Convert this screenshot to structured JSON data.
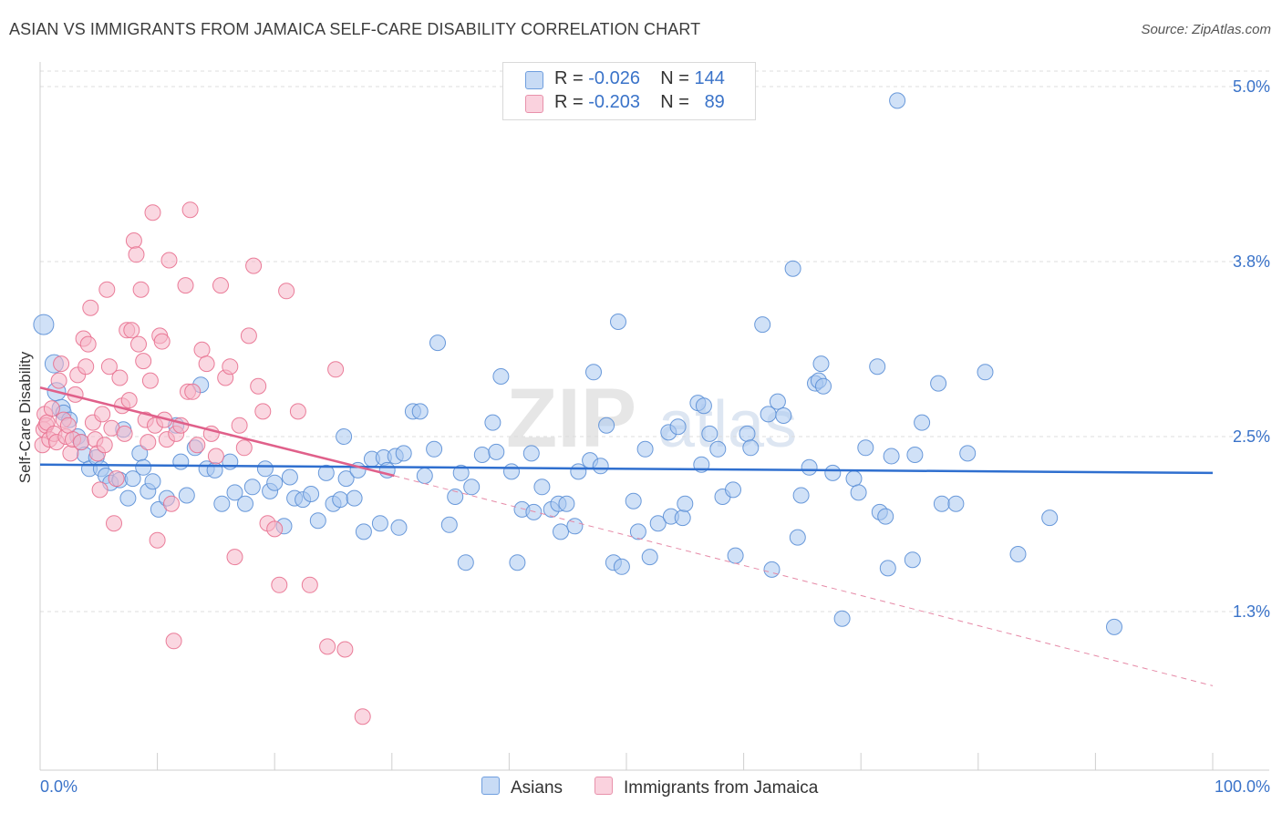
{
  "header": {
    "title": "ASIAN VS IMMIGRANTS FROM JAMAICA SELF-CARE DISABILITY CORRELATION CHART",
    "source": "Source: ZipAtlas.com"
  },
  "legend": {
    "rows": [
      {
        "r_label": "R =",
        "r_value": "-0.026",
        "n_label": "N =",
        "n_value": "144",
        "color": "#a9c8f0"
      },
      {
        "r_label": "R =",
        "r_value": "-0.203",
        "n_label": "N =",
        "n_value": "89",
        "color": "#f5b6c8"
      }
    ]
  },
  "bottom_legend": [
    {
      "label": "Asians",
      "color": "#a9c8f0"
    },
    {
      "label": "Immigrants from Jamaica",
      "color": "#f5b6c8"
    }
  ],
  "watermark": {
    "zip": "ZIP",
    "atlas": "atlas"
  },
  "chart_data": {
    "type": "scatter",
    "xlabel": "",
    "ylabel": "Self-Care Disability",
    "xlim": [
      0,
      100
    ],
    "ylim": [
      0,
      5.2
    ],
    "x_tick_labels": [
      "0.0%",
      "100.0%"
    ],
    "y_ticks": [
      {
        "value": 1.25,
        "label": "1.3%"
      },
      {
        "value": 2.5,
        "label": "2.5%"
      },
      {
        "value": 3.75,
        "label": "3.8%"
      },
      {
        "value": 5.0,
        "label": "5.0%"
      }
    ],
    "grid": true,
    "series": [
      {
        "name": "Asians",
        "color": "#5b8fd6",
        "fill": "#a9c8f0",
        "trend": {
          "x": [
            0,
            100
          ],
          "y": [
            2.3,
            2.24
          ],
          "style": "solid"
        },
        "points": [
          [
            0.3,
            3.3
          ],
          [
            1.2,
            3.02
          ],
          [
            1.4,
            2.82
          ],
          [
            1.8,
            2.7
          ],
          [
            2.0,
            2.67
          ],
          [
            2.5,
            2.62
          ],
          [
            3.2,
            2.5
          ],
          [
            3.5,
            2.46
          ],
          [
            3.8,
            2.37
          ],
          [
            4.2,
            2.27
          ],
          [
            4.8,
            2.35
          ],
          [
            5.2,
            2.27
          ],
          [
            5.6,
            2.22
          ],
          [
            6.0,
            2.17
          ],
          [
            6.8,
            2.19
          ],
          [
            7.1,
            2.55
          ],
          [
            7.5,
            2.06
          ],
          [
            7.9,
            2.2
          ],
          [
            8.5,
            2.38
          ],
          [
            8.8,
            2.28
          ],
          [
            9.2,
            2.11
          ],
          [
            9.6,
            2.18
          ],
          [
            10.1,
            1.98
          ],
          [
            10.8,
            2.06
          ],
          [
            11.6,
            2.58
          ],
          [
            12.0,
            2.32
          ],
          [
            12.5,
            2.08
          ],
          [
            13.2,
            2.42
          ],
          [
            13.7,
            2.87
          ],
          [
            14.2,
            2.27
          ],
          [
            14.9,
            2.26
          ],
          [
            15.5,
            2.02
          ],
          [
            16.2,
            2.32
          ],
          [
            16.6,
            2.1
          ],
          [
            17.5,
            2.02
          ],
          [
            18.1,
            2.14
          ],
          [
            19.2,
            2.27
          ],
          [
            19.6,
            2.11
          ],
          [
            20.0,
            2.17
          ],
          [
            20.8,
            1.86
          ],
          [
            21.3,
            2.21
          ],
          [
            21.7,
            2.06
          ],
          [
            22.4,
            2.05
          ],
          [
            23.1,
            2.09
          ],
          [
            23.7,
            1.9
          ],
          [
            24.4,
            2.24
          ],
          [
            25.0,
            2.02
          ],
          [
            25.6,
            2.05
          ],
          [
            25.9,
            2.5
          ],
          [
            26.1,
            2.2
          ],
          [
            26.8,
            2.06
          ],
          [
            27.1,
            2.26
          ],
          [
            27.6,
            1.82
          ],
          [
            28.3,
            2.34
          ],
          [
            29.0,
            1.88
          ],
          [
            29.3,
            2.35
          ],
          [
            29.6,
            2.26
          ],
          [
            30.3,
            2.36
          ],
          [
            30.6,
            1.85
          ],
          [
            31.0,
            2.38
          ],
          [
            31.8,
            2.68
          ],
          [
            32.4,
            2.68
          ],
          [
            32.8,
            2.22
          ],
          [
            33.6,
            2.41
          ],
          [
            33.9,
            3.17
          ],
          [
            34.9,
            1.87
          ],
          [
            35.4,
            2.07
          ],
          [
            35.9,
            2.24
          ],
          [
            36.3,
            1.6
          ],
          [
            36.8,
            2.14
          ],
          [
            37.7,
            2.37
          ],
          [
            38.6,
            2.6
          ],
          [
            38.9,
            2.39
          ],
          [
            39.3,
            2.93
          ],
          [
            40.2,
            2.25
          ],
          [
            40.7,
            1.6
          ],
          [
            41.1,
            1.98
          ],
          [
            41.9,
            2.38
          ],
          [
            42.1,
            1.96
          ],
          [
            42.8,
            2.14
          ],
          [
            43.6,
            1.98
          ],
          [
            44.2,
            2.02
          ],
          [
            44.4,
            1.82
          ],
          [
            44.9,
            2.02
          ],
          [
            45.6,
            1.86
          ],
          [
            45.9,
            2.25
          ],
          [
            46.9,
            2.33
          ],
          [
            47.2,
            2.96
          ],
          [
            47.8,
            2.29
          ],
          [
            48.3,
            2.58
          ],
          [
            48.9,
            1.6
          ],
          [
            49.3,
            3.32
          ],
          [
            49.6,
            1.57
          ],
          [
            50.6,
            2.04
          ],
          [
            51.0,
            1.82
          ],
          [
            51.6,
            2.41
          ],
          [
            52.0,
            1.64
          ],
          [
            52.7,
            1.88
          ],
          [
            53.6,
            2.53
          ],
          [
            53.8,
            1.93
          ],
          [
            54.4,
            2.57
          ],
          [
            54.8,
            1.92
          ],
          [
            55.0,
            2.02
          ],
          [
            56.1,
            2.74
          ],
          [
            56.4,
            2.3
          ],
          [
            56.6,
            2.72
          ],
          [
            57.1,
            2.52
          ],
          [
            57.8,
            2.41
          ],
          [
            58.2,
            2.07
          ],
          [
            59.1,
            2.12
          ],
          [
            59.3,
            1.65
          ],
          [
            60.3,
            2.52
          ],
          [
            60.6,
            2.42
          ],
          [
            61.6,
            3.3
          ],
          [
            62.1,
            2.66
          ],
          [
            62.4,
            1.55
          ],
          [
            62.9,
            2.75
          ],
          [
            63.4,
            2.65
          ],
          [
            64.2,
            3.7
          ],
          [
            64.6,
            1.78
          ],
          [
            64.9,
            2.08
          ],
          [
            65.6,
            2.28
          ],
          [
            66.1,
            2.88
          ],
          [
            66.4,
            2.9
          ],
          [
            66.8,
            2.86
          ],
          [
            66.6,
            3.02
          ],
          [
            67.6,
            2.24
          ],
          [
            68.4,
            1.2
          ],
          [
            69.4,
            2.2
          ],
          [
            69.8,
            2.1
          ],
          [
            70.4,
            2.42
          ],
          [
            71.4,
            3.0
          ],
          [
            71.6,
            1.96
          ],
          [
            72.1,
            1.93
          ],
          [
            72.3,
            1.56
          ],
          [
            72.6,
            2.36
          ],
          [
            73.1,
            4.9
          ],
          [
            74.6,
            2.37
          ],
          [
            74.4,
            1.62
          ],
          [
            76.6,
            2.88
          ],
          [
            76.9,
            2.02
          ],
          [
            78.1,
            2.02
          ],
          [
            79.1,
            2.38
          ],
          [
            80.6,
            2.96
          ],
          [
            83.4,
            1.66
          ],
          [
            86.1,
            1.92
          ],
          [
            91.6,
            1.14
          ],
          [
            75.2,
            2.6
          ]
        ]
      },
      {
        "name": "Immigrants from Jamaica",
        "color": "#e8708f",
        "fill": "#f5b6c8",
        "trend": {
          "x": [
            0,
            30.2,
            100
          ],
          "y": [
            2.85,
            2.22,
            0.72
          ],
          "style": "solid-then-dashed"
        },
        "points": [
          [
            0.2,
            2.44
          ],
          [
            0.3,
            2.55
          ],
          [
            0.4,
            2.66
          ],
          [
            0.5,
            2.58
          ],
          [
            0.6,
            2.6
          ],
          [
            0.8,
            2.48
          ],
          [
            1.0,
            2.7
          ],
          [
            1.2,
            2.52
          ],
          [
            1.4,
            2.46
          ],
          [
            1.6,
            2.9
          ],
          [
            1.8,
            3.02
          ],
          [
            2.0,
            2.62
          ],
          [
            2.2,
            2.5
          ],
          [
            2.4,
            2.58
          ],
          [
            2.6,
            2.38
          ],
          [
            2.8,
            2.48
          ],
          [
            3.0,
            2.8
          ],
          [
            3.2,
            2.94
          ],
          [
            3.5,
            2.46
          ],
          [
            3.7,
            3.2
          ],
          [
            3.9,
            3.0
          ],
          [
            4.1,
            3.16
          ],
          [
            4.3,
            3.42
          ],
          [
            4.5,
            2.6
          ],
          [
            4.7,
            2.48
          ],
          [
            4.9,
            2.38
          ],
          [
            5.1,
            2.12
          ],
          [
            5.3,
            2.66
          ],
          [
            5.5,
            2.44
          ],
          [
            5.7,
            3.55
          ],
          [
            5.9,
            3.0
          ],
          [
            6.1,
            2.56
          ],
          [
            6.3,
            1.88
          ],
          [
            6.5,
            2.2
          ],
          [
            6.8,
            2.92
          ],
          [
            7.0,
            2.72
          ],
          [
            7.2,
            2.52
          ],
          [
            7.4,
            3.26
          ],
          [
            7.6,
            2.76
          ],
          [
            7.8,
            3.26
          ],
          [
            8.0,
            3.9
          ],
          [
            8.2,
            3.8
          ],
          [
            8.4,
            3.16
          ],
          [
            8.6,
            3.55
          ],
          [
            8.8,
            3.04
          ],
          [
            9.0,
            2.62
          ],
          [
            9.2,
            2.46
          ],
          [
            9.4,
            2.9
          ],
          [
            9.6,
            4.1
          ],
          [
            9.8,
            2.58
          ],
          [
            10.0,
            1.76
          ],
          [
            10.2,
            3.22
          ],
          [
            10.4,
            3.18
          ],
          [
            10.6,
            2.62
          ],
          [
            10.8,
            2.48
          ],
          [
            11.0,
            3.76
          ],
          [
            11.2,
            2.02
          ],
          [
            11.4,
            1.04
          ],
          [
            11.6,
            2.52
          ],
          [
            12.0,
            2.58
          ],
          [
            12.4,
            3.58
          ],
          [
            12.6,
            2.82
          ],
          [
            12.8,
            4.12
          ],
          [
            13.0,
            2.82
          ],
          [
            13.4,
            2.44
          ],
          [
            13.8,
            3.12
          ],
          [
            14.2,
            3.02
          ],
          [
            14.6,
            2.52
          ],
          [
            15.0,
            2.36
          ],
          [
            15.4,
            3.58
          ],
          [
            15.8,
            2.92
          ],
          [
            16.2,
            3.0
          ],
          [
            16.6,
            1.64
          ],
          [
            17.0,
            2.58
          ],
          [
            17.4,
            2.42
          ],
          [
            17.8,
            3.22
          ],
          [
            18.2,
            3.72
          ],
          [
            18.6,
            2.86
          ],
          [
            19.0,
            2.68
          ],
          [
            19.4,
            1.88
          ],
          [
            20.0,
            1.84
          ],
          [
            20.4,
            1.44
          ],
          [
            21.0,
            3.54
          ],
          [
            22.0,
            2.68
          ],
          [
            23.0,
            1.44
          ],
          [
            24.5,
            1.0
          ],
          [
            25.2,
            2.98
          ],
          [
            26.0,
            0.98
          ],
          [
            27.5,
            0.5
          ]
        ]
      }
    ]
  }
}
